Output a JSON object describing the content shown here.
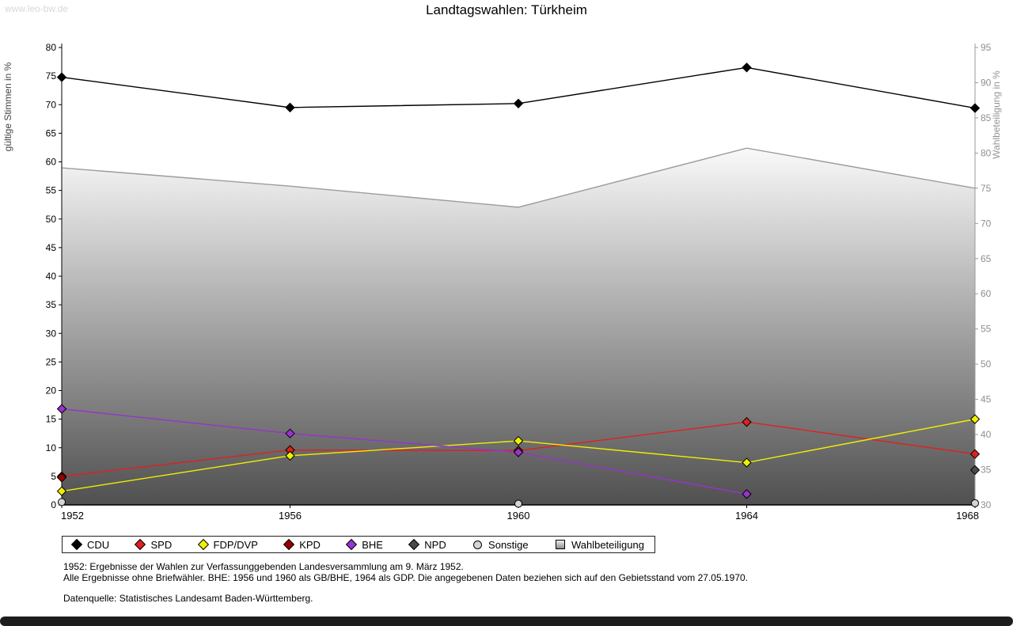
{
  "watermark": "www.leo-bw.de",
  "title": "Landtagswahlen: Türkheim",
  "footnotes": {
    "line1": "1952: Ergebnisse der Wahlen zur Verfassunggebenden Landesversammlung am 9. März 1952.",
    "line2": "Alle Ergebnisse ohne Briefwähler. BHE: 1956 und 1960 als GB/BHE, 1964 als GDP. Die angegebenen Daten beziehen sich auf den Gebietsstand vom 27.05.1970.",
    "line3": "Datenquelle: Statistisches Landesamt Baden-Württemberg."
  },
  "chart_data": {
    "type": "line",
    "title": "Landtagswahlen: Türkheim",
    "x_categories": [
      "1952",
      "1956",
      "1960",
      "1964",
      "1968"
    ],
    "left_axis": {
      "label": "gültige Stimmen in %",
      "min": 0,
      "max": 80,
      "step": 5
    },
    "right_axis": {
      "label": "Wahlbeteiligung in %",
      "min": 30,
      "max": 95,
      "step": 5
    },
    "legend_position": "bottom",
    "grid": false,
    "series": [
      {
        "name": "CDU",
        "color": "#000000",
        "marker": "diamond",
        "kind": "line",
        "axis": "left",
        "values": [
          74.8,
          69.5,
          70.2,
          76.5,
          69.4
        ]
      },
      {
        "name": "SPD",
        "color": "#e02020",
        "marker": "diamond",
        "kind": "line",
        "axis": "left",
        "values": [
          5.0,
          9.6,
          9.5,
          14.5,
          8.9
        ]
      },
      {
        "name": "FDP/DVP",
        "color": "#f0f000",
        "marker": "diamond",
        "kind": "line",
        "axis": "left",
        "values": [
          2.4,
          8.6,
          11.2,
          7.4,
          15.0
        ]
      },
      {
        "name": "KPD",
        "color": "#990000",
        "marker": "diamond",
        "kind": "line",
        "axis": "left",
        "values": [
          4.8,
          null,
          null,
          null,
          null
        ]
      },
      {
        "name": "BHE",
        "color": "#9933cc",
        "marker": "diamond",
        "kind": "line",
        "axis": "left",
        "values": [
          16.8,
          12.5,
          9.2,
          1.9,
          null
        ]
      },
      {
        "name": "NPD",
        "color": "#4a4a4a",
        "marker": "diamond",
        "kind": "line",
        "axis": "left",
        "values": [
          null,
          null,
          null,
          null,
          6.1
        ]
      },
      {
        "name": "Sonstige",
        "color": "#d4d4d4",
        "marker": "circle",
        "kind": "line",
        "axis": "left",
        "values": [
          0.5,
          null,
          0.2,
          null,
          0.3
        ]
      },
      {
        "name": "Wahlbeteiligung",
        "color": "#9c9c9c",
        "marker": "square",
        "kind": "area",
        "axis": "right",
        "values": [
          77.9,
          75.3,
          72.3,
          80.7,
          75.0
        ]
      }
    ]
  }
}
